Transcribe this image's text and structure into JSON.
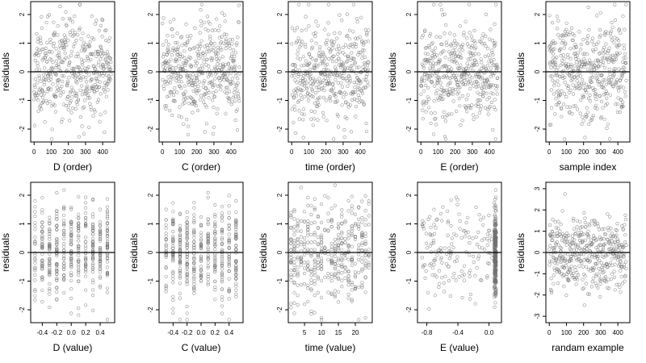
{
  "chart_data": [
    {
      "type": "scatter",
      "xlabel": "D (order)",
      "ylabel": "residuals",
      "gen": "order",
      "seed": 11,
      "xticks": [
        0,
        100,
        200,
        300,
        400
      ],
      "xtick_labels": [
        "0",
        "100",
        "200",
        "300",
        "400"
      ],
      "yticks": [
        -2,
        -1,
        0,
        1,
        2
      ],
      "ytick_labels": [
        "-2",
        "-1",
        "0",
        "1",
        "2"
      ],
      "xlim": [
        -20,
        470
      ],
      "ylim": [
        -2.45,
        2.45
      ],
      "hline": 0,
      "n_points": 450
    },
    {
      "type": "scatter",
      "xlabel": "C (order)",
      "ylabel": "residuals",
      "gen": "order",
      "seed": 23,
      "xticks": [
        0,
        100,
        200,
        300,
        400
      ],
      "xtick_labels": [
        "0",
        "100",
        "200",
        "300",
        "400"
      ],
      "yticks": [
        -2,
        -1,
        0,
        1,
        2
      ],
      "ytick_labels": [
        "-2",
        "-1",
        "0",
        "1",
        "2"
      ],
      "xlim": [
        -20,
        470
      ],
      "ylim": [
        -2.45,
        2.45
      ],
      "hline": 0,
      "n_points": 450
    },
    {
      "type": "scatter",
      "xlabel": "time (order)",
      "ylabel": "residuals",
      "gen": "order",
      "seed": 37,
      "xticks": [
        0,
        100,
        200,
        300,
        400
      ],
      "xtick_labels": [
        "0",
        "100",
        "200",
        "300",
        "400"
      ],
      "yticks": [
        -2,
        -1,
        0,
        1,
        2
      ],
      "ytick_labels": [
        "-2",
        "-1",
        "0",
        "1",
        "2"
      ],
      "xlim": [
        -20,
        470
      ],
      "ylim": [
        -2.45,
        2.45
      ],
      "hline": 0,
      "n_points": 450
    },
    {
      "type": "scatter",
      "xlabel": "E (order)",
      "ylabel": "residuals",
      "gen": "order",
      "seed": 41,
      "xticks": [
        0,
        100,
        200,
        300,
        400
      ],
      "xtick_labels": [
        "0",
        "100",
        "200",
        "300",
        "400"
      ],
      "yticks": [
        -2,
        -1,
        0,
        1,
        2
      ],
      "ytick_labels": [
        "-2",
        "-1",
        "0",
        "1",
        "2"
      ],
      "xlim": [
        -20,
        470
      ],
      "ylim": [
        -2.45,
        2.45
      ],
      "hline": 0,
      "n_points": 450
    },
    {
      "type": "scatter",
      "xlabel": "sample index",
      "ylabel": "residuals",
      "gen": "order",
      "seed": 53,
      "xticks": [
        0,
        100,
        200,
        300,
        400
      ],
      "xtick_labels": [
        "0",
        "100",
        "200",
        "300",
        "400"
      ],
      "yticks": [
        -2,
        -1,
        0,
        1,
        2
      ],
      "ytick_labels": [
        "-2",
        "-1",
        "0",
        "1",
        "2"
      ],
      "xlim": [
        -20,
        470
      ],
      "ylim": [
        -2.45,
        2.45
      ],
      "hline": 0,
      "n_points": 450
    },
    {
      "type": "scatter",
      "xlabel": "D (value)",
      "ylabel": "residuals",
      "gen": "discrete",
      "seed": 61,
      "levels": [
        -0.5,
        -0.4,
        -0.3,
        -0.2,
        -0.1,
        0.0,
        0.1,
        0.2,
        0.3,
        0.4,
        0.5
      ],
      "xticks": [
        -0.4,
        -0.2,
        0.0,
        0.2,
        0.4
      ],
      "xtick_labels": [
        "-0.4",
        "-0.2",
        "0.0",
        "0.2",
        "0.4"
      ],
      "yticks": [
        -2,
        -1,
        0,
        1,
        2
      ],
      "ytick_labels": [
        "-2",
        "-1",
        "0",
        "1",
        "2"
      ],
      "xlim": [
        -0.56,
        0.6
      ],
      "ylim": [
        -2.45,
        2.45
      ],
      "hline": 0,
      "n_points": 450
    },
    {
      "type": "scatter",
      "xlabel": "C (value)",
      "ylabel": "residuals",
      "gen": "discrete",
      "seed": 73,
      "levels": [
        -0.5,
        -0.4,
        -0.3,
        -0.2,
        -0.1,
        0.0,
        0.1,
        0.2,
        0.3,
        0.4,
        0.5
      ],
      "xticks": [
        -0.4,
        -0.2,
        0.0,
        0.2,
        0.4
      ],
      "xtick_labels": [
        "-0.4",
        "-0.2",
        "0.0",
        "0.2",
        "0.4"
      ],
      "yticks": [
        -2,
        -1,
        0,
        1,
        2
      ],
      "ytick_labels": [
        "-2",
        "-1",
        "0",
        "1",
        "2"
      ],
      "xlim": [
        -0.6,
        0.6
      ],
      "ylim": [
        -2.45,
        2.45
      ],
      "hline": 0,
      "n_points": 450
    },
    {
      "type": "scatter",
      "xlabel": "time (value)",
      "ylabel": "residuals",
      "gen": "discrete",
      "seed": 89,
      "levels": [
        1,
        2,
        3,
        4,
        5,
        6,
        7,
        8,
        9,
        10,
        11,
        12,
        13,
        14,
        15,
        16,
        17,
        18,
        19,
        20,
        21,
        22,
        23,
        24
      ],
      "xticks": [
        5,
        10,
        15,
        20
      ],
      "xtick_labels": [
        "5",
        "10",
        "15",
        "20"
      ],
      "yticks": [
        -2,
        -1,
        0,
        1,
        2
      ],
      "ytick_labels": [
        "-2",
        "-1",
        "0",
        "1",
        "2"
      ],
      "xlim": [
        0.2,
        25
      ],
      "ylim": [
        -2.45,
        2.45
      ],
      "hline": 0,
      "n_points": 450
    },
    {
      "type": "scatter",
      "xlabel": "E (value)",
      "ylabel": "residuals",
      "gen": "e_value",
      "seed": 97,
      "xticks": [
        -0.8,
        -0.4,
        0.0
      ],
      "xtick_labels": [
        "-0.8",
        "-0.4",
        "0.0"
      ],
      "yticks": [
        -2,
        -1,
        0,
        1,
        2
      ],
      "ytick_labels": [
        "-2",
        "-1",
        "0",
        "1",
        "2"
      ],
      "xlim": [
        -0.92,
        0.16
      ],
      "ylim": [
        -2.45,
        2.45
      ],
      "hline": 0,
      "n_points": 450
    },
    {
      "type": "scatter",
      "xlabel": "randam example",
      "ylabel": "residuals",
      "gen": "order",
      "seed": 101,
      "xticks": [
        0,
        100,
        200,
        300,
        400
      ],
      "xtick_labels": [
        "0",
        "100",
        "200",
        "300",
        "400"
      ],
      "yticks": [
        -3,
        -2,
        -1,
        0,
        1,
        2,
        3
      ],
      "ytick_labels": [
        "-3",
        "-2",
        "-1",
        "0",
        "1",
        "2",
        "3"
      ],
      "xlim": [
        -20,
        470
      ],
      "ylim": [
        -3.3,
        3.3
      ],
      "hline": 0,
      "n_points": 450
    }
  ],
  "colors": {
    "point_stroke": "#707070",
    "frame": "#000000",
    "background": "#ffffff"
  }
}
